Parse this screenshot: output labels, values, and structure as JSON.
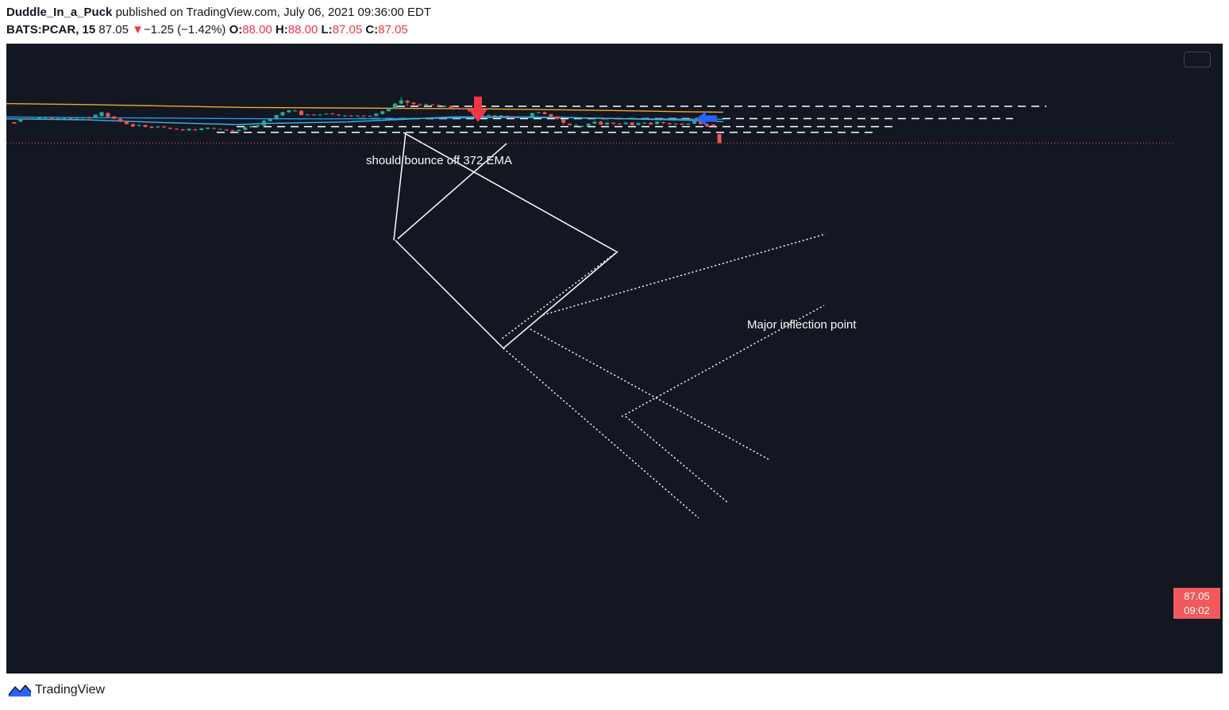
{
  "header": {
    "author": "Duddle_In_a_Puck",
    "published_text": "published on TradingView.com, July 06, 2021 09:36:00 EDT",
    "symbol": "BATS:PCAR, 15",
    "last": "87.05",
    "change": "−1.25 (−1.42%)",
    "open_label": "O:",
    "open": "88.00",
    "high_label": "H:",
    "high": "88.00",
    "low_label": "L:",
    "low": "87.05",
    "close_label": "C:",
    "close": "87.05"
  },
  "annotations": {
    "ema_note": "should bounce off 372 EMA",
    "inflection_note": "Major inflection point"
  },
  "price_label": {
    "price": "87.05",
    "countdown": "09:02"
  },
  "footer": {
    "brand": "TradingView"
  },
  "colors": {
    "background": "#131722",
    "up": "#26a69a",
    "down": "#ef5350",
    "ema_orange": "#f0a830",
    "ema_blue": "#2196f3",
    "ema_cyan": "#3ab8d8"
  },
  "chart_data": {
    "type": "candlestick",
    "symbol": "BATS:PCAR",
    "interval": "15",
    "price_range": [
      86.7,
      91.9
    ],
    "last_price": 87.05,
    "candles": [
      [
        89.25,
        89.1,
        89.25,
        89.1
      ],
      [
        89.3,
        89.55,
        89.55,
        89.3
      ],
      [
        89.65,
        89.55,
        89.7,
        89.55
      ],
      [
        89.6,
        89.65,
        89.7,
        89.55
      ],
      [
        89.6,
        89.75,
        89.8,
        89.55
      ],
      [
        89.65,
        89.78,
        89.8,
        89.6
      ],
      [
        89.75,
        89.62,
        89.8,
        89.55
      ],
      [
        89.65,
        89.68,
        89.7,
        89.62
      ],
      [
        89.6,
        89.7,
        89.75,
        89.55
      ],
      [
        89.7,
        89.6,
        89.75,
        89.55
      ],
      [
        89.65,
        89.7,
        89.75,
        89.6
      ],
      [
        89.68,
        89.72,
        89.75,
        89.65
      ],
      [
        89.8,
        89.65,
        89.85,
        89.6
      ],
      [
        89.7,
        90.05,
        90.05,
        89.7
      ],
      [
        89.9,
        90.3,
        90.35,
        89.85
      ],
      [
        90.2,
        89.8,
        90.3,
        89.75
      ],
      [
        89.85,
        89.6,
        89.9,
        89.55
      ],
      [
        89.6,
        89.3,
        89.65,
        89.25
      ],
      [
        89.35,
        89.05,
        89.4,
        89.0
      ],
      [
        89.05,
        88.8,
        89.1,
        88.75
      ],
      [
        88.85,
        88.95,
        89.0,
        88.8
      ],
      [
        88.95,
        88.75,
        89.0,
        88.7
      ],
      [
        88.78,
        88.65,
        88.85,
        88.6
      ],
      [
        88.7,
        88.8,
        88.85,
        88.65
      ],
      [
        88.8,
        88.7,
        88.85,
        88.65
      ],
      [
        88.65,
        88.55,
        88.7,
        88.5
      ],
      [
        88.55,
        88.48,
        88.6,
        88.45
      ],
      [
        88.5,
        88.4,
        88.55,
        88.35
      ],
      [
        88.38,
        88.55,
        88.6,
        88.35
      ],
      [
        88.5,
        88.4,
        88.55,
        88.35
      ],
      [
        88.42,
        88.6,
        88.65,
        88.4
      ],
      [
        88.55,
        88.68,
        88.7,
        88.5
      ],
      [
        88.62,
        88.58,
        88.7,
        88.55
      ],
      [
        88.55,
        88.55,
        88.6,
        88.48
      ],
      [
        88.48,
        88.38,
        88.5,
        88.35
      ],
      [
        88.4,
        88.32,
        88.45,
        88.25
      ],
      [
        88.3,
        88.45,
        88.5,
        88.25
      ],
      [
        88.42,
        88.7,
        88.75,
        88.4
      ],
      [
        88.7,
        88.8,
        88.85,
        88.68
      ],
      [
        88.78,
        88.92,
        89.0,
        88.75
      ],
      [
        88.9,
        89.4,
        89.5,
        88.85
      ],
      [
        89.35,
        89.6,
        89.6,
        89.3
      ],
      [
        89.55,
        90.0,
        90.05,
        89.5
      ],
      [
        89.95,
        90.3,
        90.35,
        89.9
      ],
      [
        90.3,
        90.5,
        90.55,
        90.2
      ],
      [
        90.45,
        90.45,
        90.6,
        90.4
      ],
      [
        90.45,
        90.0,
        90.5,
        89.95
      ],
      [
        90.0,
        90.05,
        90.15,
        89.95
      ],
      [
        90.05,
        90.0,
        90.1,
        89.95
      ],
      [
        90.0,
        90.05,
        90.1,
        89.95
      ],
      [
        90.1,
        90.15,
        90.2,
        90.05
      ],
      [
        90.15,
        90.1,
        90.25,
        90.05
      ],
      [
        90.05,
        89.95,
        90.1,
        89.9
      ],
      [
        89.95,
        89.95,
        90.0,
        89.85
      ],
      [
        89.95,
        89.9,
        90.0,
        89.85
      ],
      [
        89.9,
        89.95,
        90.0,
        89.85
      ],
      [
        89.95,
        89.9,
        90.0,
        89.85
      ],
      [
        89.9,
        89.9,
        89.95,
        89.8
      ],
      [
        89.9,
        90.15,
        90.2,
        89.85
      ],
      [
        90.1,
        90.4,
        90.45,
        90.05
      ],
      [
        90.4,
        90.7,
        90.75,
        90.35
      ],
      [
        90.7,
        91.2,
        91.3,
        90.65
      ],
      [
        91.2,
        91.55,
        91.9,
        91.1
      ],
      [
        91.5,
        91.3,
        91.6,
        90.95
      ],
      [
        91.3,
        91.15,
        91.35,
        90.95
      ],
      [
        91.1,
        91.05,
        91.25,
        90.95
      ],
      [
        91.05,
        91.15,
        91.2,
        91.0
      ],
      [
        91.1,
        91.05,
        91.15,
        91.0
      ],
      [
        91.05,
        90.95,
        91.1,
        90.85
      ],
      [
        90.95,
        90.95,
        91.0,
        90.9
      ],
      [
        90.95,
        90.75,
        91.0,
        90.7
      ],
      [
        90.75,
        90.7,
        90.8,
        90.65
      ],
      [
        90.7,
        90.6,
        90.75,
        90.55
      ],
      [
        90.6,
        90.4,
        90.65,
        90.35
      ],
      [
        90.35,
        89.95,
        90.4,
        89.9
      ],
      [
        89.95,
        89.9,
        90.0,
        89.85
      ],
      [
        89.92,
        90.0,
        90.05,
        89.9
      ],
      [
        89.95,
        89.9,
        90.0,
        89.85
      ],
      [
        89.88,
        89.95,
        90.0,
        89.85
      ],
      [
        89.9,
        89.85,
        89.95,
        89.8
      ],
      [
        89.85,
        89.75,
        89.9,
        89.72
      ],
      [
        89.75,
        89.75,
        89.85,
        89.72
      ],
      [
        89.75,
        89.85,
        89.9,
        89.7
      ],
      [
        89.85,
        90.2,
        90.25,
        89.8
      ],
      [
        90.2,
        90.3,
        90.3,
        90.15
      ],
      [
        90.3,
        90.1,
        90.35,
        90.05
      ],
      [
        90.1,
        89.8,
        90.1,
        89.75
      ],
      [
        89.85,
        89.6,
        89.9,
        89.5
      ],
      [
        89.55,
        89.2,
        89.6,
        89.0
      ],
      [
        89.1,
        88.95,
        89.15,
        88.9
      ],
      [
        88.95,
        88.95,
        89.05,
        88.7
      ],
      [
        88.8,
        88.85,
        88.9,
        88.75
      ],
      [
        88.85,
        89.1,
        89.15,
        88.8
      ],
      [
        89.1,
        89.3,
        89.4,
        89.05
      ],
      [
        89.3,
        89.0,
        89.4,
        88.95
      ],
      [
        89.0,
        89.2,
        89.25,
        88.95
      ],
      [
        89.2,
        89.1,
        89.25,
        89.0
      ],
      [
        89.1,
        89.05,
        89.15,
        89.0
      ],
      [
        89.05,
        89.2,
        89.3,
        89.0
      ],
      [
        89.2,
        88.95,
        89.25,
        88.9
      ],
      [
        88.95,
        89.15,
        89.2,
        88.9
      ],
      [
        89.1,
        89.2,
        89.25,
        89.05
      ],
      [
        89.2,
        89.0,
        89.25,
        88.95
      ],
      [
        89.05,
        89.3,
        89.35,
        89.0
      ],
      [
        89.25,
        89.15,
        89.3,
        89.05
      ],
      [
        89.15,
        89.05,
        89.2,
        89.0
      ],
      [
        89.05,
        89.1,
        89.15,
        89.0
      ],
      [
        89.1,
        89.0,
        89.15,
        88.95
      ],
      [
        89.0,
        89.1,
        89.15,
        88.95
      ],
      [
        89.1,
        89.4,
        89.45,
        89.05
      ],
      [
        89.35,
        89.05,
        89.4,
        89.0
      ],
      [
        89.05,
        88.8,
        89.2,
        88.75
      ],
      [
        89.0,
        88.85,
        89.05,
        88.8
      ],
      [
        88.0,
        87.05,
        88.0,
        87.05
      ]
    ],
    "ema_372": [
      [
        0,
        91.2
      ],
      [
        100,
        91.1
      ],
      [
        200,
        90.95
      ],
      [
        300,
        90.8
      ],
      [
        400,
        90.75
      ],
      [
        500,
        90.7
      ],
      [
        600,
        90.65
      ],
      [
        700,
        90.55
      ],
      [
        780,
        90.45
      ],
      [
        850,
        90.35
      ],
      [
        903,
        90.3
      ]
    ],
    "ema_blue": [
      [
        0,
        89.8
      ],
      [
        100,
        89.72
      ],
      [
        200,
        89.68
      ],
      [
        300,
        89.62
      ],
      [
        400,
        89.6
      ],
      [
        500,
        89.62
      ],
      [
        600,
        89.72
      ],
      [
        700,
        89.72
      ],
      [
        800,
        89.6
      ],
      [
        903,
        89.55
      ]
    ],
    "ema_cyan": [
      [
        0,
        89.6
      ],
      [
        100,
        89.5
      ],
      [
        200,
        89.2
      ],
      [
        290,
        89.0
      ],
      [
        330,
        89.12
      ],
      [
        430,
        89.28
      ],
      [
        500,
        89.55
      ],
      [
        560,
        89.8
      ],
      [
        620,
        89.82
      ],
      [
        700,
        89.75
      ],
      [
        780,
        89.6
      ],
      [
        860,
        89.45
      ],
      [
        903,
        89.3
      ]
    ],
    "horizontal_levels": [
      90.92,
      89.62,
      88.78,
      88.18
    ],
    "annotation_arrows": [
      {
        "direction": "down",
        "color": "#f23645",
        "price": 91.1
      },
      {
        "direction": "left",
        "color": "#2962ff",
        "price": 89.62
      }
    ]
  }
}
